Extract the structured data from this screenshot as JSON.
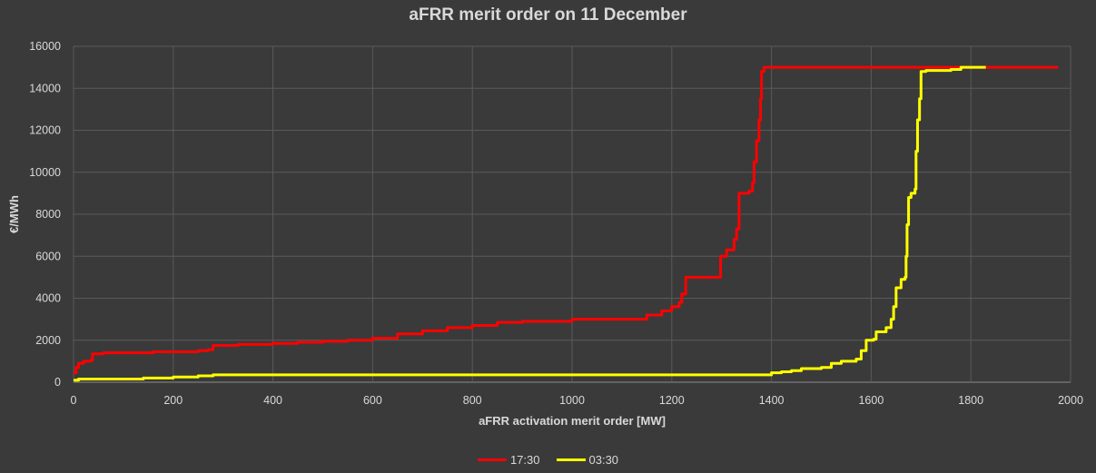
{
  "chart_data": {
    "type": "line",
    "title": "aFRR merit order on 11 December",
    "xlabel": "aFRR activation merit order [MW]",
    "ylabel": "€/MWh",
    "xlim": [
      0,
      2000
    ],
    "ylim": [
      0,
      16000
    ],
    "x_ticks": [
      0,
      200,
      400,
      600,
      800,
      1000,
      1200,
      1400,
      1600,
      1800,
      2000
    ],
    "y_ticks": [
      0,
      2000,
      4000,
      6000,
      8000,
      10000,
      12000,
      14000,
      16000
    ],
    "grid": true,
    "legend_position": "bottom",
    "series": [
      {
        "name": "17:30",
        "color": "#ff0000",
        "points": [
          [
            0,
            450
          ],
          [
            5,
            700
          ],
          [
            10,
            900
          ],
          [
            20,
            1000
          ],
          [
            35,
            1050
          ],
          [
            38,
            1350
          ],
          [
            60,
            1400
          ],
          [
            140,
            1400
          ],
          [
            160,
            1450
          ],
          [
            250,
            1500
          ],
          [
            270,
            1550
          ],
          [
            280,
            1750
          ],
          [
            330,
            1800
          ],
          [
            400,
            1850
          ],
          [
            450,
            1900
          ],
          [
            500,
            1950
          ],
          [
            550,
            2000
          ],
          [
            600,
            2100
          ],
          [
            650,
            2300
          ],
          [
            700,
            2450
          ],
          [
            750,
            2600
          ],
          [
            800,
            2700
          ],
          [
            850,
            2850
          ],
          [
            900,
            2900
          ],
          [
            1000,
            3000
          ],
          [
            1100,
            3000
          ],
          [
            1150,
            3200
          ],
          [
            1180,
            3400
          ],
          [
            1200,
            3600
          ],
          [
            1215,
            3800
          ],
          [
            1220,
            4200
          ],
          [
            1228,
            5000
          ],
          [
            1295,
            5000
          ],
          [
            1298,
            6000
          ],
          [
            1310,
            6300
          ],
          [
            1325,
            6800
          ],
          [
            1330,
            7300
          ],
          [
            1335,
            9000
          ],
          [
            1355,
            9100
          ],
          [
            1362,
            9500
          ],
          [
            1365,
            10500
          ],
          [
            1370,
            11500
          ],
          [
            1375,
            12500
          ],
          [
            1378,
            13500
          ],
          [
            1380,
            14800
          ],
          [
            1385,
            15000
          ],
          [
            1500,
            15000
          ],
          [
            1800,
            15000
          ],
          [
            1975,
            15000
          ]
        ]
      },
      {
        "name": "03:30",
        "color": "#ffff00",
        "points": [
          [
            0,
            100
          ],
          [
            10,
            150
          ],
          [
            140,
            200
          ],
          [
            200,
            250
          ],
          [
            250,
            300
          ],
          [
            280,
            350
          ],
          [
            500,
            350
          ],
          [
            800,
            350
          ],
          [
            1100,
            350
          ],
          [
            1390,
            350
          ],
          [
            1400,
            450
          ],
          [
            1420,
            500
          ],
          [
            1440,
            550
          ],
          [
            1460,
            650
          ],
          [
            1500,
            700
          ],
          [
            1520,
            900
          ],
          [
            1540,
            1000
          ],
          [
            1570,
            1100
          ],
          [
            1580,
            1500
          ],
          [
            1590,
            2000
          ],
          [
            1605,
            2050
          ],
          [
            1610,
            2400
          ],
          [
            1630,
            2600
          ],
          [
            1640,
            3000
          ],
          [
            1645,
            3600
          ],
          [
            1650,
            4500
          ],
          [
            1660,
            4900
          ],
          [
            1668,
            5000
          ],
          [
            1670,
            6000
          ],
          [
            1672,
            7500
          ],
          [
            1675,
            8800
          ],
          [
            1680,
            9000
          ],
          [
            1688,
            9200
          ],
          [
            1690,
            11000
          ],
          [
            1693,
            12500
          ],
          [
            1697,
            13500
          ],
          [
            1700,
            14800
          ],
          [
            1710,
            14850
          ],
          [
            1760,
            14900
          ],
          [
            1780,
            15000
          ],
          [
            1830,
            15000
          ]
        ]
      }
    ]
  }
}
